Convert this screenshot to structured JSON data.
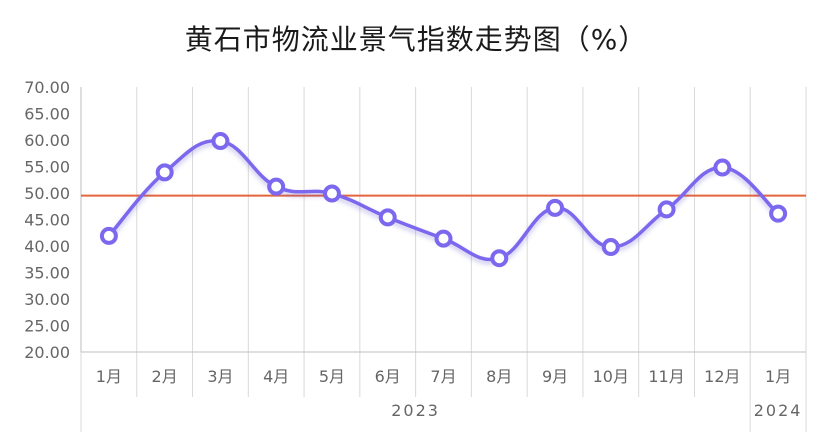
{
  "chart_data": {
    "type": "line",
    "title": "黄石市物流业景气指数走势图（%）",
    "categories": [
      "1月",
      "2月",
      "3月",
      "4月",
      "5月",
      "6月",
      "7月",
      "8月",
      "9月",
      "10月",
      "11月",
      "12月",
      "1月"
    ],
    "year_groups": [
      {
        "label": "2023",
        "from": 0,
        "to": 11
      },
      {
        "label": "2024",
        "from": 12,
        "to": 12
      }
    ],
    "series": [
      {
        "values": [
          41.9,
          53.9,
          59.8,
          51.2,
          49.9,
          45.4,
          41.4,
          37.7,
          47.2,
          39.8,
          46.9,
          54.8,
          46.1
        ],
        "color": "#7b68ee"
      }
    ],
    "reference_line": {
      "value": 49.5,
      "color": "#e5643d"
    },
    "ylim": [
      20,
      70
    ],
    "yticks": [
      "20.00",
      "25.00",
      "30.00",
      "35.00",
      "40.00",
      "45.00",
      "50.00",
      "55.00",
      "60.00",
      "65.00",
      "70.00"
    ],
    "grid": "vertical",
    "legend": "none"
  }
}
